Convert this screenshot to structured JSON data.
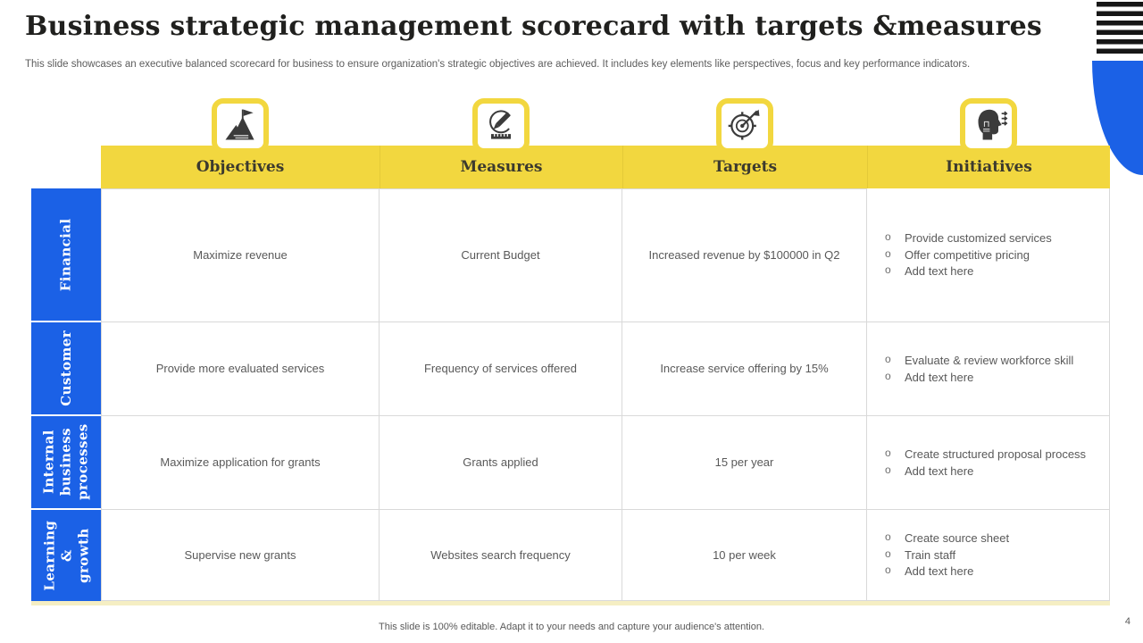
{
  "slide": {
    "title": "Business strategic management scorecard with targets &measures",
    "subtitle": "This slide showcases an executive balanced scorecard for business to ensure organization's strategic objectives are achieved. It includes key elements like perspectives, focus and key performance indicators.",
    "footer_note": "This slide is 100% editable. Adapt it to your needs and capture your audience's attention.",
    "page_number": "4"
  },
  "icons": [
    {
      "name": "mountain-flag-icon"
    },
    {
      "name": "pencil-measure-icon"
    },
    {
      "name": "target-arrow-icon"
    },
    {
      "name": "idea-head-icon"
    }
  ],
  "table": {
    "column_headers": [
      "Objectives",
      "Measures",
      "Targets",
      "Initiatives"
    ],
    "rows": [
      {
        "category": "Financial",
        "objective": "Maximize revenue",
        "measure": "Current Budget",
        "target": "Increased revenue by $100000 in Q2",
        "initiatives": [
          "Provide customized services",
          "Offer competitive pricing",
          "Add text here"
        ]
      },
      {
        "category": "Customer",
        "objective": "Provide more evaluated services",
        "measure": "Frequency of services offered",
        "target": "Increase service offering by 15%",
        "initiatives": [
          "Evaluate & review workforce skill",
          "Add text here"
        ]
      },
      {
        "category": "Internal business processes",
        "objective": "Maximize application for grants",
        "measure": "Grants applied",
        "target": "15 per year",
        "initiatives": [
          "Create structured proposal process",
          "Add text here"
        ]
      },
      {
        "category": "Learning & growth",
        "objective": "Supervise new grants",
        "measure": "Websites search frequency",
        "target": "10 per week",
        "initiatives": [
          "Create source sheet",
          "Train staff",
          "Add text here"
        ]
      }
    ]
  },
  "colors": {
    "accent_yellow": "#f2d73f",
    "accent_blue": "#1b61e6",
    "body_text": "#595959",
    "grid_border": "#d9d9d9"
  }
}
